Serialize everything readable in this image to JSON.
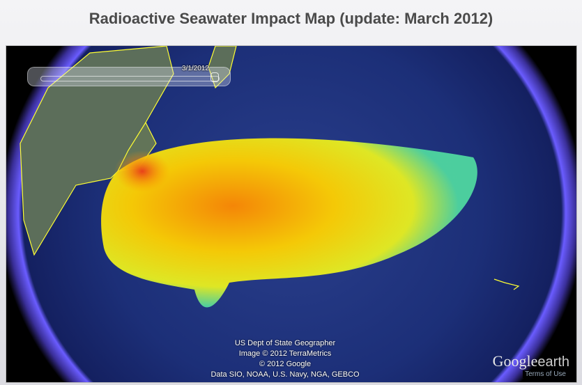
{
  "title": "Radioactive Seawater Impact Map (update: March 2012)",
  "timeline": {
    "date_label": "3/1/2012",
    "position_percent": 98
  },
  "attribution": [
    "US Dept of State Geographer",
    "Image © 2012 TerraMetrics",
    "© 2012 Google",
    "Data SIO, NOAA, U.S. Navy, NGA, GEBCO"
  ],
  "logo": {
    "google": "Google",
    "earth": "earth"
  },
  "terms_link": "Terms of Use",
  "colors": {
    "ocean": "#1c2f78",
    "glow": "#6a5cff",
    "coastline": "#ffff33",
    "plume_high": "#e8401a",
    "plume_mid": "#ffd000",
    "plume_low": "#4fd6a0"
  }
}
